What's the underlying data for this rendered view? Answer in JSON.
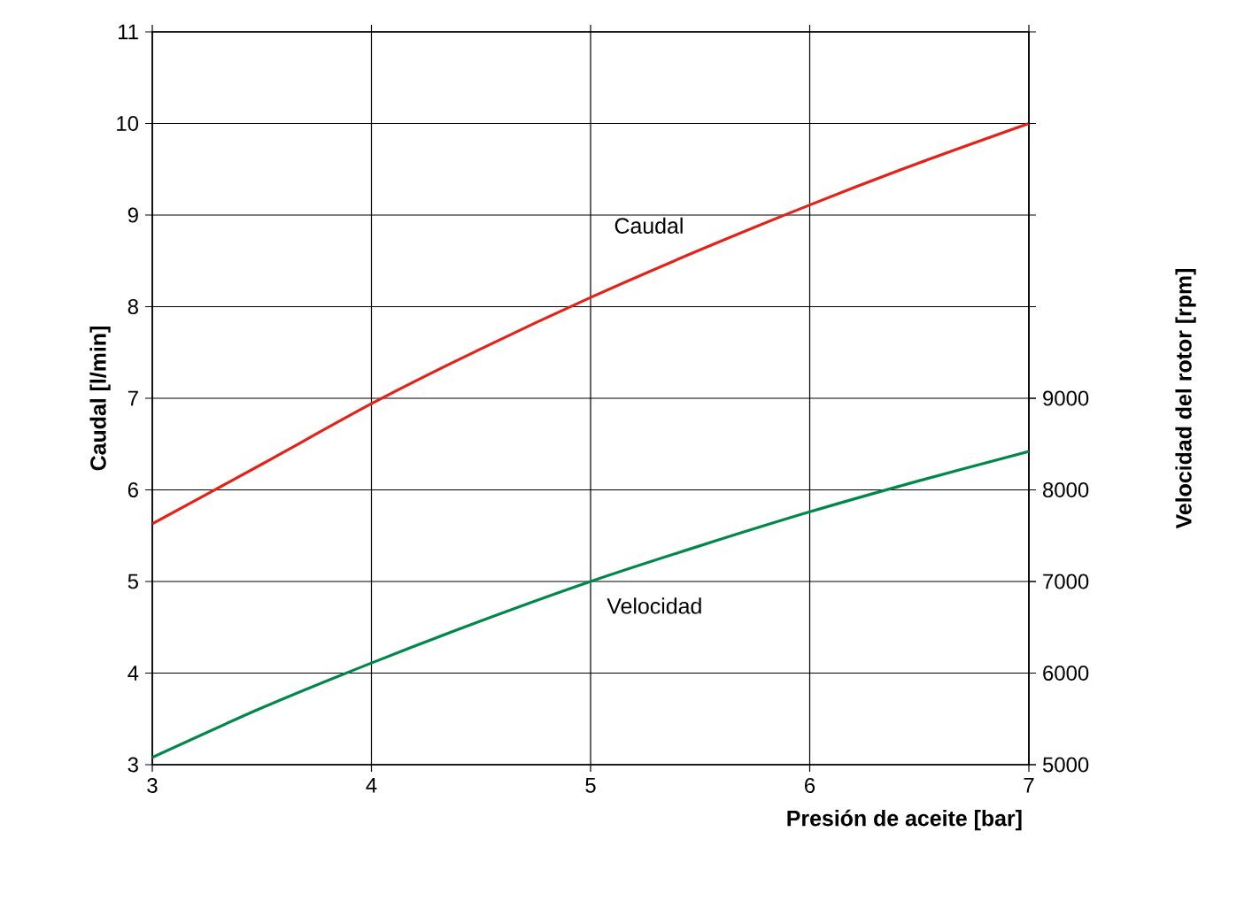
{
  "chart_data": {
    "type": "line",
    "xlabel": "Presión de aceite [bar]",
    "ylabel": "Caudal [l/min]",
    "y2label": "Velocidad del rotor [rpm]",
    "x": [
      3,
      3.5,
      4,
      4.5,
      5,
      5.5,
      6,
      6.5,
      7
    ],
    "series": [
      {
        "name": "Caudal",
        "color": "#e2231a",
        "values": [
          5.63,
          6.28,
          6.94,
          7.54,
          8.1,
          8.62,
          9.11,
          9.57,
          10.0
        ]
      },
      {
        "name": "Velocidad",
        "color": "#00884a",
        "axis": "y2",
        "values": [
          5080,
          5620,
          6110,
          6570,
          7000,
          7390,
          7760,
          8100,
          8420
        ]
      }
    ],
    "xlim": [
      3,
      7
    ],
    "ylim": [
      3,
      11
    ],
    "y2lim": [
      5000,
      13000
    ],
    "xticks": [
      3,
      4,
      5,
      6,
      7
    ],
    "yticks": [
      3,
      4,
      5,
      6,
      7,
      8,
      9,
      10,
      11
    ],
    "y2ticks": [
      5000,
      6000,
      7000,
      8000,
      9000
    ],
    "grid": true,
    "marker": "none",
    "line_style": "solid"
  }
}
